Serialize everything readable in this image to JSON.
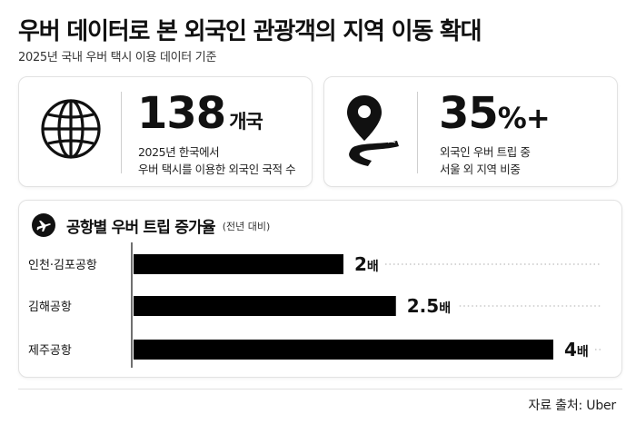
{
  "header": {
    "title": "우버 데이터로 본 외국인 관광객의 지역 이동 확대",
    "subtitle": "2025년 국내 우버 택시 이용 데이터 기준"
  },
  "stats": [
    {
      "icon": "globe-icon",
      "value": "138",
      "unit": "개국",
      "desc_line1": "2025년 한국에서",
      "desc_line2": "우버 택시를 이용한 외국인 국적 수"
    },
    {
      "icon": "location-pin-road-icon",
      "value": "35",
      "unit": "%+",
      "desc_line1": "외국인 우버 트립 중",
      "desc_line2": "서울 외 지역 비중"
    }
  ],
  "chart_title": "공항별 우버 트립 증가율",
  "chart_note": "(전년 대비)",
  "chart_data": {
    "type": "bar",
    "orientation": "horizontal",
    "title": "공항별 우버 트립 증가율",
    "subtitle": "(전년 대비)",
    "categories": [
      "인천·김포공항",
      "김해공항",
      "제주공항"
    ],
    "values": [
      2,
      2.5,
      4
    ],
    "data_labels": [
      "2배",
      "2.5배",
      "4배"
    ],
    "xlim": [
      0,
      4
    ],
    "bar_color": "#000000"
  },
  "source": "자료 출처: Uber",
  "colors": {
    "bar": "#000000",
    "dotted_line": "#bdbdbd",
    "card_border": "#e2e2e2"
  }
}
